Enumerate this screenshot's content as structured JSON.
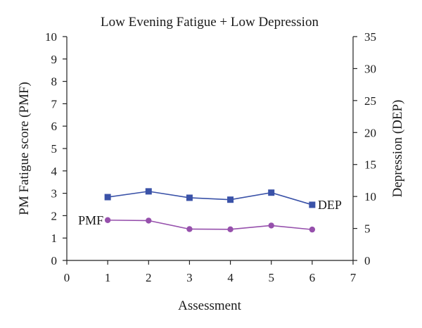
{
  "chart_data": {
    "type": "line",
    "title": "Low Evening Fatigue + Low Depression",
    "xlabel": "Assessment",
    "ylabel_left": "PM Fatigue score (PMF)",
    "ylabel_right": "Depression (DEP)",
    "xlim": [
      0,
      7
    ],
    "x_ticks": [
      "0",
      "1",
      "2",
      "3",
      "4",
      "5",
      "6",
      "7"
    ],
    "ylim_left": [
      0,
      10
    ],
    "y_ticks_left": [
      "0",
      "1",
      "2",
      "3",
      "4",
      "5",
      "6",
      "7",
      "8",
      "9",
      "10"
    ],
    "ylim_right": [
      0,
      35
    ],
    "y_ticks_right": [
      "0",
      "5",
      "10",
      "15",
      "20",
      "25",
      "30",
      "35"
    ],
    "grid": false,
    "series": [
      {
        "name": "DEP",
        "axis": "right",
        "color": "#3a52a8",
        "marker": "square",
        "x": [
          1,
          2,
          3,
          4,
          5,
          6
        ],
        "values": [
          9.9,
          10.8,
          9.8,
          9.5,
          10.6,
          8.7
        ]
      },
      {
        "name": "PMF",
        "axis": "left",
        "color": "#9650ac",
        "marker": "circle",
        "x": [
          1,
          2,
          3,
          4,
          5,
          6
        ],
        "values": [
          1.8,
          1.78,
          1.4,
          1.39,
          1.56,
          1.38
        ]
      }
    ]
  }
}
